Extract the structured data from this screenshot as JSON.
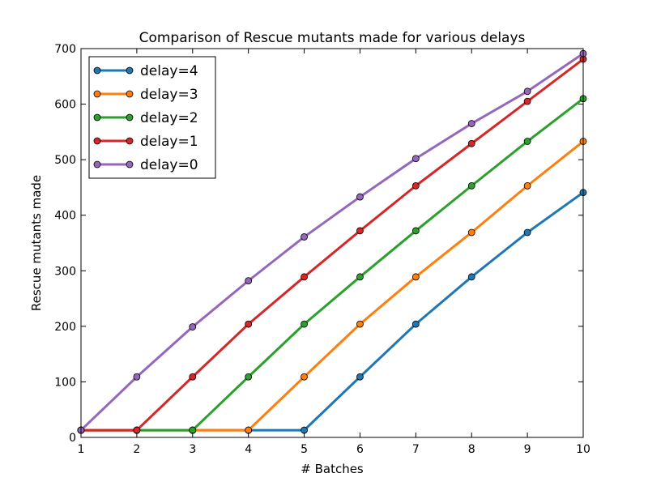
{
  "chart_data": {
    "type": "line",
    "title": "Comparison of Rescue mutants made for various delays",
    "xlabel": "# Batches",
    "ylabel": "Rescue mutants made",
    "xlim": [
      1,
      10
    ],
    "ylim": [
      0,
      700
    ],
    "xticks": [
      1,
      2,
      3,
      4,
      5,
      6,
      7,
      8,
      9,
      10
    ],
    "yticks": [
      0,
      100,
      200,
      300,
      400,
      500,
      600,
      700
    ],
    "legend_position": "top-left",
    "grid": false,
    "x": [
      1,
      2,
      3,
      4,
      5,
      6,
      7,
      8,
      9,
      10
    ],
    "series": [
      {
        "name": "delay=4",
        "color": "#1f77b4",
        "values": [
          13,
          13,
          13,
          13,
          13,
          109,
          204,
          289,
          369,
          441
        ]
      },
      {
        "name": "delay=3",
        "color": "#ff7f0e",
        "values": [
          13,
          13,
          13,
          13,
          109,
          204,
          289,
          369,
          453,
          533
        ]
      },
      {
        "name": "delay=2",
        "color": "#2ca02c",
        "values": [
          13,
          13,
          13,
          109,
          204,
          289,
          372,
          453,
          533,
          610
        ]
      },
      {
        "name": "delay=1",
        "color": "#d62728",
        "values": [
          13,
          13,
          109,
          204,
          289,
          372,
          453,
          529,
          605,
          681
        ]
      },
      {
        "name": "delay=0",
        "color": "#9467bd",
        "values": [
          13,
          109,
          199,
          282,
          361,
          433,
          502,
          565,
          623,
          691
        ]
      }
    ]
  }
}
